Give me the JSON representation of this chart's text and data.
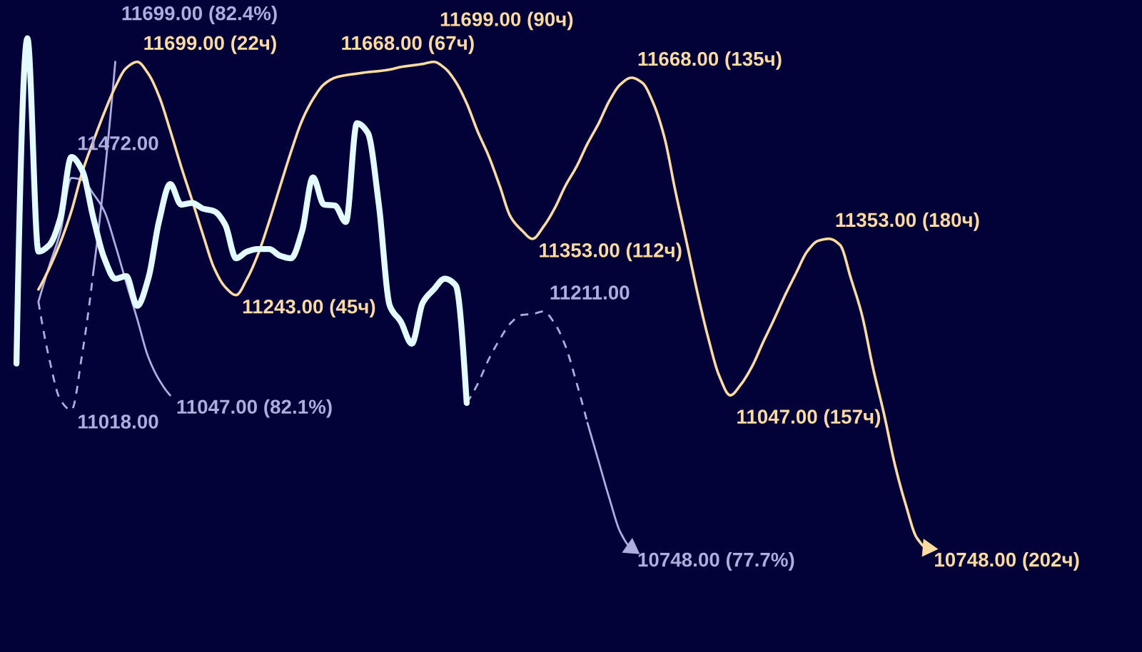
{
  "chart_data": {
    "type": "line",
    "ylim": [
      10545,
      11820
    ],
    "tick_labels": false,
    "grid": false,
    "categories": [
      null,
      null,
      null,
      null,
      null,
      null,
      null,
      null,
      null,
      null,
      null,
      null,
      null,
      null,
      null,
      null,
      null,
      null,
      null,
      null,
      null,
      null,
      null,
      null,
      null,
      null,
      null,
      null,
      null,
      null,
      null,
      null,
      null,
      null,
      null,
      null,
      null,
      null,
      null,
      null,
      null,
      null,
      null,
      null,
      null,
      null,
      null,
      null,
      null,
      null,
      null,
      null,
      null,
      null,
      null,
      null,
      null,
      null,
      null,
      null,
      null,
      null,
      null,
      null,
      null,
      null,
      null,
      null,
      null,
      null,
      null,
      null,
      null,
      null,
      null,
      null,
      null,
      null,
      null,
      null,
      null,
      null,
      null,
      null,
      null,
      null,
      null,
      null,
      null,
      null,
      null,
      null,
      null,
      null,
      null,
      null,
      null,
      null,
      null,
      null,
      null,
      null,
      null,
      null
    ],
    "series": [
      {
        "color": "#e3fbff",
        "line_style": "solid",
        "values": [
          null,
          11109,
          11745,
          11328,
          11341,
          11394,
          11513,
          11486,
          11394,
          11315,
          11275,
          11280,
          11222,
          11275,
          11389,
          11460,
          11420,
          11423,
          11412,
          11407,
          11381,
          11315,
          11328,
          11333,
          11333,
          11320,
          11315,
          11367,
          11473,
          11420,
          11418,
          11386,
          11579,
          11560,
          11420,
          11222,
          11191,
          11148,
          11228,
          11254,
          11275,
          11262,
          11032,
          null,
          null,
          null,
          null,
          null,
          null,
          null,
          null,
          null,
          null,
          null,
          null,
          null,
          null,
          null,
          null,
          null,
          null,
          null,
          null,
          null,
          null,
          null,
          null,
          null,
          null,
          null,
          null,
          null,
          null,
          null,
          null,
          null,
          null,
          null,
          null,
          null,
          null,
          null,
          null,
          null,
          null,
          null,
          null,
          null,
          null,
          null,
          null,
          null,
          null,
          null,
          null,
          null,
          null,
          null,
          null,
          null,
          null,
          null,
          null,
          null
        ]
      },
      {
        "color": "#fcdba2",
        "line_style": "solid",
        "values": [
          null,
          null,
          null,
          11254,
          11296,
          11346,
          11407,
          11484,
          11544,
          11600,
          11650,
          11687,
          11699,
          11676,
          11631,
          11565,
          11494,
          11428,
          11360,
          11296,
          11259,
          11243,
          11275,
          11323,
          11386,
          11455,
          11523,
          11584,
          11626,
          11655,
          11668,
          11673,
          11676,
          11679,
          11681,
          11684,
          11689,
          11692,
          11695,
          11699,
          11687,
          11660,
          11618,
          11563,
          11515,
          11457,
          11396,
          11370,
          11353,
          11377,
          11412,
          11457,
          11494,
          11539,
          11578,
          11623,
          11655,
          11668,
          11658,
          11618,
          11552,
          11447,
          11349,
          11249,
          11159,
          11085,
          11047,
          11069,
          11104,
          11151,
          11196,
          11243,
          11286,
          11328,
          11349,
          11353,
          11341,
          11275,
          11204,
          11101,
          11011,
          10911,
          10832,
          10768,
          10748,
          null,
          null,
          null,
          null,
          null,
          null,
          null,
          null,
          null,
          null,
          null,
          null,
          null,
          null,
          null,
          null,
          null,
          null,
          null
        ],
        "value_labels": [
          null,
          null,
          null,
          null,
          null,
          null,
          null,
          null,
          null,
          null,
          null,
          null,
          "11699.00 (22ч)",
          null,
          null,
          null,
          null,
          null,
          null,
          null,
          null,
          "11243.00 (45ч)",
          null,
          null,
          null,
          null,
          null,
          null,
          null,
          null,
          "11668.00 (67ч)",
          null,
          null,
          null,
          null,
          null,
          null,
          null,
          null,
          "11699.00 (90ч)",
          null,
          null,
          null,
          null,
          null,
          null,
          null,
          null,
          "11353.00 (112ч)",
          null,
          null,
          null,
          null,
          null,
          null,
          null,
          null,
          "11668.00 (135ч)",
          null,
          null,
          null,
          null,
          null,
          null,
          null,
          null,
          "11047.00 (157ч)",
          null,
          null,
          null,
          null,
          null,
          null,
          null,
          null,
          "11353.00 (180ч)",
          null,
          null,
          null,
          null,
          null,
          null,
          null,
          null,
          "10748.00 (202ч)",
          null,
          null,
          null,
          null,
          null,
          null,
          null,
          null,
          null,
          null,
          null,
          null,
          null,
          null,
          null,
          null,
          null,
          null,
          null
        ]
      },
      {
        "color": "#adadde",
        "line_style": "solid",
        "values": [
          null,
          null,
          null,
          11230,
          11301,
          11367,
          11472,
          11468,
          11441,
          11407,
          11341,
          11267,
          11196,
          11122,
          11077,
          11047,
          null,
          null,
          null,
          null,
          null,
          null,
          null,
          null,
          null,
          null,
          null,
          null,
          null,
          null,
          null,
          null,
          null,
          null,
          null,
          null,
          null,
          null,
          null,
          null,
          null,
          null,
          null,
          null,
          null,
          null,
          null,
          null,
          null,
          null,
          null,
          null,
          null,
          null,
          null,
          null,
          null,
          null,
          null,
          null,
          null,
          null,
          null,
          null,
          null,
          null,
          null,
          null,
          null,
          null,
          null,
          null,
          null,
          null,
          null,
          null,
          null,
          null,
          null,
          null,
          null,
          null,
          null,
          null,
          null,
          null,
          null,
          null,
          null,
          null,
          null,
          null,
          null,
          null,
          null,
          null,
          null,
          null,
          null,
          null,
          null,
          null,
          null,
          null
        ],
        "value_labels": [
          null,
          null,
          null,
          null,
          null,
          null,
          "11472.00",
          null,
          null,
          null,
          null,
          null,
          null,
          null,
          null,
          "11047.00 (82.1%)",
          null,
          null,
          null,
          null,
          null,
          null,
          null,
          null,
          null,
          null,
          null,
          null,
          null,
          null,
          null,
          null,
          null,
          null,
          null,
          null,
          null,
          null,
          null,
          null,
          null,
          null,
          null,
          null,
          null,
          null,
          null,
          null,
          null,
          null,
          null,
          null,
          null,
          null,
          null,
          null,
          null,
          null,
          null,
          null,
          null,
          null,
          null,
          null,
          null,
          null,
          null,
          null,
          null,
          null,
          null,
          null,
          null,
          null,
          null,
          null,
          null,
          null,
          null,
          null,
          null,
          null,
          null,
          null,
          null,
          null,
          null,
          null,
          null,
          null,
          null,
          null,
          null,
          null,
          null,
          null,
          null,
          null,
          null,
          null,
          null,
          null,
          null,
          null
        ]
      },
      {
        "color": "#adadde",
        "line_style": "dashed",
        "values": [
          null,
          null,
          null,
          11230,
          11117,
          11038,
          11018,
          11130,
          11288,
          null,
          null,
          null,
          null,
          null,
          null,
          null,
          null,
          null,
          null,
          null,
          null,
          null,
          null,
          null,
          null,
          null,
          null,
          null,
          null,
          null,
          null,
          null,
          null,
          null,
          null,
          null,
          null,
          null,
          null,
          null,
          null,
          null,
          null,
          null,
          null,
          null,
          null,
          null,
          null,
          null,
          null,
          null,
          null,
          null,
          null,
          null,
          null,
          null,
          null,
          null,
          null,
          null,
          null,
          null,
          null,
          null,
          null,
          null,
          null,
          null,
          null,
          null,
          null,
          null,
          null,
          null,
          null,
          null,
          null,
          null,
          null,
          null,
          null,
          null,
          null,
          null,
          null,
          null,
          null,
          null,
          null,
          null,
          null,
          null,
          null,
          null,
          null,
          null,
          null,
          null,
          null,
          null,
          null,
          null
        ],
        "value_labels": [
          null,
          null,
          null,
          null,
          null,
          null,
          "11018.00",
          null,
          null,
          null,
          null,
          null,
          null,
          null,
          null,
          null,
          null,
          null,
          null,
          null,
          null,
          null,
          null,
          null,
          null,
          null,
          null,
          null,
          null,
          null,
          null,
          null,
          null,
          null,
          null,
          null,
          null,
          null,
          null,
          null,
          null,
          null,
          null,
          null,
          null,
          null,
          null,
          null,
          null,
          null,
          null,
          null,
          null,
          null,
          null,
          null,
          null,
          null,
          null,
          null,
          null,
          null,
          null,
          null,
          null,
          null,
          null,
          null,
          null,
          null,
          null,
          null,
          null,
          null,
          null,
          null,
          null,
          null,
          null,
          null,
          null,
          null,
          null,
          null,
          null,
          null,
          null,
          null,
          null,
          null,
          null,
          null,
          null,
          null,
          null,
          null,
          null,
          null,
          null,
          null,
          null,
          null,
          null,
          null
        ]
      },
      {
        "color": "#adadde",
        "line_style": "solid",
        "values": [
          null,
          null,
          null,
          null,
          null,
          null,
          null,
          null,
          11288,
          11473,
          11699,
          null,
          null,
          null,
          null,
          null,
          null,
          null,
          null,
          null,
          null,
          null,
          null,
          null,
          null,
          null,
          null,
          null,
          null,
          null,
          null,
          null,
          null,
          null,
          null,
          null,
          null,
          null,
          null,
          null,
          null,
          null,
          null,
          null,
          null,
          null,
          null,
          null,
          null,
          null,
          null,
          null,
          null,
          null,
          null,
          null,
          null,
          null,
          null,
          null,
          null,
          null,
          null,
          null,
          null,
          null,
          null,
          null,
          null,
          null,
          null,
          null,
          null,
          null,
          null,
          null,
          null,
          null,
          null,
          null,
          null,
          null,
          null,
          null,
          null,
          null,
          null,
          null,
          null,
          null,
          null,
          null,
          null,
          null,
          null,
          null,
          null,
          null,
          null,
          null,
          null,
          null,
          null,
          null
        ],
        "value_labels": [
          null,
          null,
          null,
          null,
          null,
          null,
          null,
          null,
          null,
          null,
          "11699.00 (82.4%)",
          null,
          null,
          null,
          null,
          null,
          null,
          null,
          null,
          null,
          null,
          null,
          null,
          null,
          null,
          null,
          null,
          null,
          null,
          null,
          null,
          null,
          null,
          null,
          null,
          null,
          null,
          null,
          null,
          null,
          null,
          null,
          null,
          null,
          null,
          null,
          null,
          null,
          null,
          null,
          null,
          null,
          null,
          null,
          null,
          null,
          null,
          null,
          null,
          null,
          null,
          null,
          null,
          null,
          null,
          null,
          null,
          null,
          null,
          null,
          null,
          null,
          null,
          null,
          null,
          null,
          null,
          null,
          null,
          null,
          null,
          null,
          null,
          null,
          null,
          null,
          null,
          null,
          null,
          null,
          null,
          null,
          null,
          null,
          null,
          null,
          null,
          null,
          null,
          null,
          null,
          null,
          null,
          null
        ]
      },
      {
        "color": "#adadde",
        "line_style": "dashed",
        "values": [
          null,
          null,
          null,
          null,
          null,
          null,
          null,
          null,
          null,
          null,
          null,
          null,
          null,
          null,
          null,
          null,
          null,
          null,
          null,
          null,
          null,
          null,
          null,
          null,
          null,
          null,
          null,
          null,
          null,
          null,
          null,
          null,
          null,
          null,
          null,
          null,
          null,
          null,
          null,
          null,
          null,
          null,
          11032,
          11069,
          11117,
          11156,
          11188,
          11204,
          11206,
          11211,
          11188,
          11143,
          11072,
          10993,
          null,
          null,
          null,
          null,
          null,
          null,
          null,
          null,
          null,
          null,
          null,
          null,
          null,
          null,
          null,
          null,
          null,
          null,
          null,
          null,
          null,
          null,
          null,
          null,
          null,
          null,
          null,
          null,
          null,
          null,
          null,
          null,
          null,
          null,
          null,
          null,
          null,
          null,
          null,
          null,
          null,
          null,
          null,
          null,
          null,
          null,
          null,
          null,
          null,
          null
        ],
        "value_labels": [
          null,
          null,
          null,
          null,
          null,
          null,
          null,
          null,
          null,
          null,
          null,
          null,
          null,
          null,
          null,
          null,
          null,
          null,
          null,
          null,
          null,
          null,
          null,
          null,
          null,
          null,
          null,
          null,
          null,
          null,
          null,
          null,
          null,
          null,
          null,
          null,
          null,
          null,
          null,
          null,
          null,
          null,
          null,
          null,
          null,
          null,
          null,
          null,
          null,
          "11211.00",
          null,
          null,
          null,
          null,
          null,
          null,
          null,
          null,
          null,
          null,
          null,
          null,
          null,
          null,
          null,
          null,
          null,
          null,
          null,
          null,
          null,
          null,
          null,
          null,
          null,
          null,
          null,
          null,
          null,
          null,
          null,
          null,
          null,
          null,
          null,
          null,
          null,
          null,
          null,
          null,
          null,
          null,
          null,
          null,
          null,
          null,
          null,
          null,
          null,
          null,
          null,
          null,
          null,
          null
        ]
      },
      {
        "color": "#adadde",
        "line_style": "solid",
        "values": [
          null,
          null,
          null,
          null,
          null,
          null,
          null,
          null,
          null,
          null,
          null,
          null,
          null,
          null,
          null,
          null,
          null,
          null,
          null,
          null,
          null,
          null,
          null,
          null,
          null,
          null,
          null,
          null,
          null,
          null,
          null,
          null,
          null,
          null,
          null,
          null,
          null,
          null,
          null,
          null,
          null,
          null,
          null,
          null,
          null,
          null,
          null,
          null,
          null,
          null,
          null,
          null,
          null,
          10993,
          10919,
          10845,
          10779,
          10748,
          null,
          null,
          null,
          null,
          null,
          null,
          null,
          null,
          null,
          null,
          null,
          null,
          null,
          null,
          null,
          null,
          null,
          null,
          null,
          null,
          null,
          null,
          null,
          null,
          null,
          null,
          null,
          null,
          null,
          null,
          null,
          null,
          null,
          null,
          null,
          null,
          null,
          null,
          null,
          null,
          null,
          null,
          null,
          null,
          null,
          null
        ],
        "value_labels": [
          null,
          null,
          null,
          null,
          null,
          null,
          null,
          null,
          null,
          null,
          null,
          null,
          null,
          null,
          null,
          null,
          null,
          null,
          null,
          null,
          null,
          null,
          null,
          null,
          null,
          null,
          null,
          null,
          null,
          null,
          null,
          null,
          null,
          null,
          null,
          null,
          null,
          null,
          null,
          null,
          null,
          null,
          null,
          null,
          null,
          null,
          null,
          null,
          null,
          null,
          null,
          null,
          null,
          null,
          null,
          null,
          null,
          "10748.00 (77.7%)",
          null,
          null,
          null,
          null,
          null,
          null,
          null,
          null,
          null,
          null,
          null,
          null,
          null,
          null,
          null,
          null,
          null,
          null,
          null,
          null,
          null,
          null,
          null,
          null,
          null,
          null,
          null,
          null,
          null,
          null,
          null,
          null,
          null,
          null,
          null,
          null,
          null,
          null,
          null,
          null,
          null,
          null,
          null,
          null,
          null,
          null
        ]
      }
    ]
  }
}
